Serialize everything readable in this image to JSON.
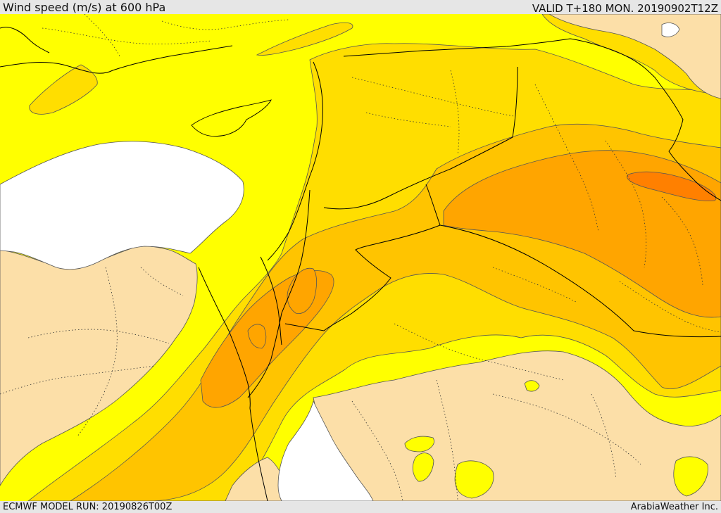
{
  "header": {
    "title": "Wind speed (m/s) at 600 hPa",
    "valid": "VALID T+180 MON. 20190902T12Z"
  },
  "footer": {
    "model_run": "ECMWF MODEL RUN: 20190826T00Z",
    "credit": "ArabiaWeather Inc."
  },
  "map": {
    "fill_colors": {
      "land_no_data": "#fcdfa8",
      "sea": "#ffffff",
      "band_1": "#ffff00",
      "band_2": "#ffde00",
      "band_3": "#ffc400",
      "band_4": "#ffa500",
      "band_5": "#ff8000"
    },
    "line_colors": {
      "borders": "#000000",
      "contours": "#555555",
      "internal_boundaries": "#333333"
    }
  }
}
